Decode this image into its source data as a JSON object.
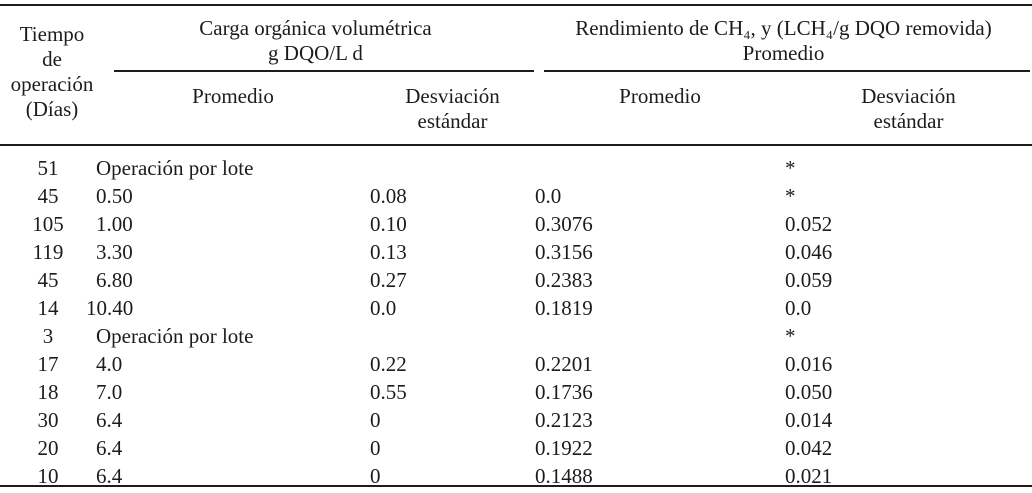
{
  "ink": "#1c1c1c",
  "background": "#ffffff",
  "header": {
    "tiempo_lines": [
      "Tiempo de",
      "operación",
      "(Días)"
    ],
    "group_carga": {
      "line1": "Carga orgánica volumétrica",
      "line2": "g DQO/L d"
    },
    "group_rendimiento": {
      "line1": "Rendimiento de CH₄, y (LCH₄/g DQO removida)",
      "line2": "Promedio"
    },
    "sub": {
      "carga_promedio": "Promedio",
      "carga_desviacion": [
        "Desviación",
        "estándar"
      ],
      "rend_promedio": "Promedio",
      "rend_desviacion": [
        "Desviación",
        "estándar"
      ]
    }
  },
  "rows": [
    {
      "t": "51",
      "cov_prom": "Operación por lote",
      "cov_desv": "",
      "rend_prom": "",
      "rend_desv": "*"
    },
    {
      "t": "45",
      "cov_prom": "0.50",
      "cov_desv": "0.08",
      "rend_prom": "0.0",
      "rend_desv": "*"
    },
    {
      "t": "105",
      "cov_prom": "1.00",
      "cov_desv": "0.10",
      "rend_prom": "0.3076",
      "rend_desv": "0.052"
    },
    {
      "t": "119",
      "cov_prom": "3.30",
      "cov_desv": "0.13",
      "rend_prom": "0.3156",
      "rend_desv": "0.046"
    },
    {
      "t": "45",
      "cov_prom": "6.80",
      "cov_desv": "0.27",
      "rend_prom": "0.2383",
      "rend_desv": "0.059"
    },
    {
      "t": "14",
      "cov_prom": "10.40",
      "cov_desv": "0.0",
      "rend_prom": "0.1819",
      "rend_desv": "0.0"
    },
    {
      "t": "3",
      "cov_prom": "Operación por lote",
      "cov_desv": "",
      "rend_prom": "",
      "rend_desv": "*"
    },
    {
      "t": "17",
      "cov_prom": "4.0",
      "cov_desv": "0.22",
      "rend_prom": "0.2201",
      "rend_desv": "0.016"
    },
    {
      "t": "18",
      "cov_prom": "7.0",
      "cov_desv": "0.55",
      "rend_prom": "0.1736",
      "rend_desv": "0.050"
    },
    {
      "t": "30",
      "cov_prom": "6.4",
      "cov_desv": "0",
      "rend_prom": "0.2123",
      "rend_desv": "0.014"
    },
    {
      "t": "20",
      "cov_prom": "6.4",
      "cov_desv": "0",
      "rend_prom": "0.1922",
      "rend_desv": "0.042"
    },
    {
      "t": "10",
      "cov_prom": "6.4",
      "cov_desv": "0",
      "rend_prom": "0.1488",
      "rend_desv": "0.021"
    }
  ]
}
